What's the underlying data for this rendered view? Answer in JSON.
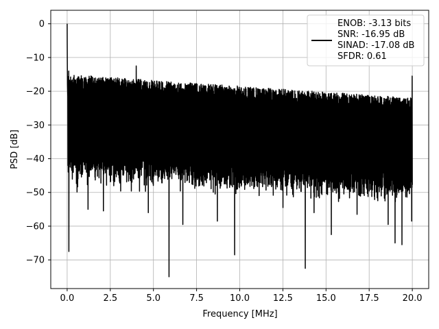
{
  "chart_data": {
    "type": "line",
    "title": "",
    "xlabel": "Frequency [MHz]",
    "ylabel": "PSD [dB]",
    "xlim": [
      -0.95,
      20.95
    ],
    "ylim": [
      -78.5,
      4.0
    ],
    "x_ticks": [
      0.0,
      2.5,
      5.0,
      7.5,
      10.0,
      12.5,
      15.0,
      17.5,
      20.0
    ],
    "x_tick_labels": [
      "0.0",
      "2.5",
      "5.0",
      "7.5",
      "10.0",
      "12.5",
      "15.0",
      "17.5",
      "20.0"
    ],
    "y_ticks": [
      0,
      -10,
      -20,
      -30,
      -40,
      -50,
      -60,
      -70
    ],
    "y_tick_labels": [
      "0",
      "−10",
      "−20",
      "−30",
      "−40",
      "−50",
      "−60",
      "−70"
    ],
    "grid": true,
    "legend_position": "top-right",
    "line_color": "#000000",
    "series": [
      {
        "name": "ENOB: -3.13 bits\nSNR: -16.95 dB\nSINAD: -17.08 dB\nSFDR: 0.61",
        "x_range": [
          0.0,
          20.0
        ],
        "baseline_db": -30,
        "upper_envelope_db": [
          -15,
          -22
        ],
        "typical_lower_db": [
          -42,
          -48
        ],
        "peaks": [
          {
            "x": 0.0,
            "y": 0.0
          },
          {
            "x": 0.1,
            "y": -14
          },
          {
            "x": 4.0,
            "y": -12.5
          },
          {
            "x": 20.0,
            "y": -15.5
          }
        ],
        "dips": [
          {
            "x": 0.1,
            "y": -67.5
          },
          {
            "x": 1.2,
            "y": -55.0
          },
          {
            "x": 2.1,
            "y": -55.5
          },
          {
            "x": 4.7,
            "y": -56.0
          },
          {
            "x": 5.9,
            "y": -75.0
          },
          {
            "x": 6.7,
            "y": -59.5
          },
          {
            "x": 8.7,
            "y": -58.5
          },
          {
            "x": 9.7,
            "y": -68.5
          },
          {
            "x": 12.5,
            "y": -54.5
          },
          {
            "x": 13.8,
            "y": -72.5
          },
          {
            "x": 14.3,
            "y": -56.0
          },
          {
            "x": 15.3,
            "y": -62.5
          },
          {
            "x": 16.8,
            "y": -56.5
          },
          {
            "x": 18.6,
            "y": -59.5
          },
          {
            "x": 19.0,
            "y": -65.0
          },
          {
            "x": 19.4,
            "y": -65.5
          },
          {
            "x": 19.95,
            "y": -58.5
          }
        ]
      }
    ],
    "legend_lines": [
      "ENOB: -3.13 bits",
      "SNR: -16.95 dB",
      "SINAD: -17.08 dB",
      "SFDR: 0.61"
    ]
  }
}
